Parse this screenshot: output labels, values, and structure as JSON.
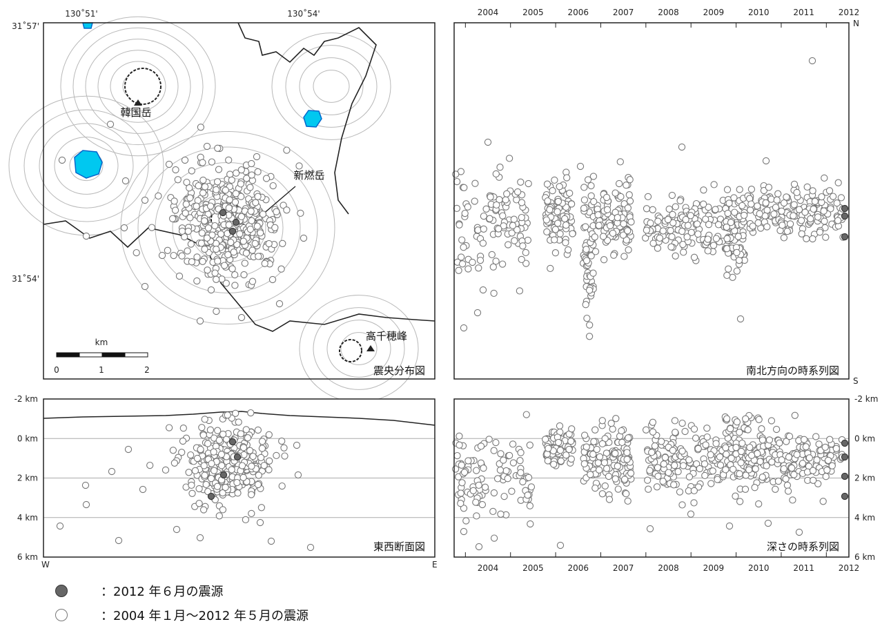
{
  "chart_data": [
    {
      "type": "scatter",
      "panel": "epicenter-map",
      "title": "震央分布図",
      "lon_ticks": [
        "130˚51'",
        "130˚54'"
      ],
      "lat_ticks": [
        "31˚57'",
        "31˚54'"
      ],
      "labels": {
        "karakunidake": "韓国岳",
        "shinmoedake": "新燃岳",
        "takachiho": "高千穂峰"
      },
      "scalebar": {
        "unit": "km",
        "ticks": [
          "0",
          "1",
          "2"
        ]
      },
      "colors": {
        "lake": "#00c8f0",
        "point_fill": "#ffffff",
        "point_edge": "#777777",
        "recent_fill": "#666666"
      }
    },
    {
      "type": "scatter",
      "panel": "ns-timeseries",
      "title": "南北方向の時系列図",
      "years": [
        "2004",
        "2005",
        "2006",
        "2007",
        "2008",
        "2009",
        "2010",
        "2011",
        "2012"
      ],
      "xlim": [
        2003.75,
        2012.5
      ],
      "axis_n": "N",
      "axis_s": "S"
    },
    {
      "type": "scatter",
      "panel": "ew-section",
      "title": "東西断面図",
      "yticks": [
        "-2 km",
        "0 km",
        "2 km",
        "4 km",
        "6 km"
      ],
      "ylim": [
        -2,
        6
      ],
      "axis_w": "W",
      "axis_e": "E"
    },
    {
      "type": "scatter",
      "panel": "depth-timeseries",
      "title": "深さの時系列図",
      "years": [
        "2004",
        "2005",
        "2006",
        "2007",
        "2008",
        "2009",
        "2010",
        "2011",
        "2012"
      ],
      "yticks": [
        "-2 km",
        "0 km",
        "2 km",
        "4 km",
        "6 km"
      ],
      "ylim": [
        -2,
        6
      ]
    }
  ],
  "legend": [
    {
      "marker": "dark",
      "text": "：2012 年６月の震源"
    },
    {
      "marker": "light",
      "text": "：2004 年１月～2012 年５月の震源"
    }
  ]
}
